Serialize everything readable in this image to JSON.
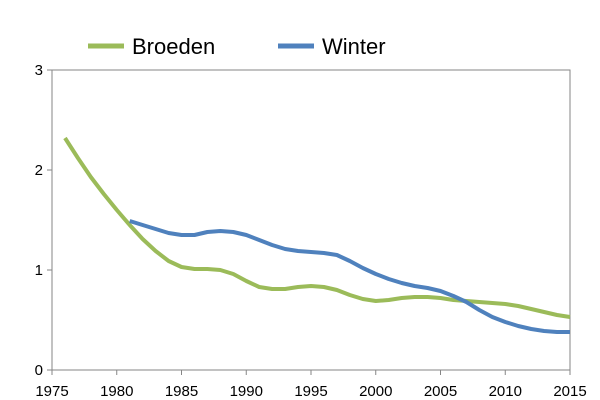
{
  "chart_data": {
    "type": "line",
    "title": "",
    "xlabel": "",
    "ylabel": "",
    "xlim": [
      1975,
      2015
    ],
    "ylim": [
      0,
      3
    ],
    "x_ticks": [
      1975,
      1980,
      1985,
      1990,
      1995,
      2000,
      2005,
      2010,
      2015
    ],
    "y_ticks": [
      0,
      1,
      2,
      3
    ],
    "grid": false,
    "legend": "top-left",
    "series": [
      {
        "name": "Broeden",
        "color": "#9bbb59",
        "x": [
          1976,
          1977,
          1978,
          1979,
          1980,
          1981,
          1982,
          1983,
          1984,
          1985,
          1986,
          1987,
          1988,
          1989,
          1990,
          1991,
          1992,
          1993,
          1994,
          1995,
          1996,
          1997,
          1998,
          1999,
          2000,
          2001,
          2002,
          2003,
          2004,
          2005,
          2006,
          2007,
          2008,
          2009,
          2010,
          2011,
          2012,
          2013,
          2014,
          2015
        ],
        "y": [
          2.32,
          2.12,
          1.93,
          1.76,
          1.6,
          1.45,
          1.31,
          1.19,
          1.09,
          1.03,
          1.01,
          1.01,
          1.0,
          0.96,
          0.89,
          0.83,
          0.81,
          0.81,
          0.83,
          0.84,
          0.83,
          0.8,
          0.75,
          0.71,
          0.69,
          0.7,
          0.72,
          0.73,
          0.73,
          0.72,
          0.7,
          0.69,
          0.68,
          0.67,
          0.66,
          0.64,
          0.61,
          0.58,
          0.55,
          0.53
        ]
      },
      {
        "name": "Winter",
        "color": "#4f81bd",
        "x": [
          1981,
          1982,
          1983,
          1984,
          1985,
          1986,
          1987,
          1988,
          1989,
          1990,
          1991,
          1992,
          1993,
          1994,
          1995,
          1996,
          1997,
          1998,
          1999,
          2000,
          2001,
          2002,
          2003,
          2004,
          2005,
          2006,
          2007,
          2008,
          2009,
          2010,
          2011,
          2012,
          2013,
          2014,
          2015
        ],
        "y": [
          1.49,
          1.45,
          1.41,
          1.37,
          1.35,
          1.35,
          1.38,
          1.39,
          1.38,
          1.35,
          1.3,
          1.25,
          1.21,
          1.19,
          1.18,
          1.17,
          1.15,
          1.09,
          1.02,
          0.96,
          0.91,
          0.87,
          0.84,
          0.82,
          0.79,
          0.74,
          0.68,
          0.6,
          0.53,
          0.48,
          0.44,
          0.41,
          0.39,
          0.38,
          0.38
        ]
      }
    ]
  }
}
